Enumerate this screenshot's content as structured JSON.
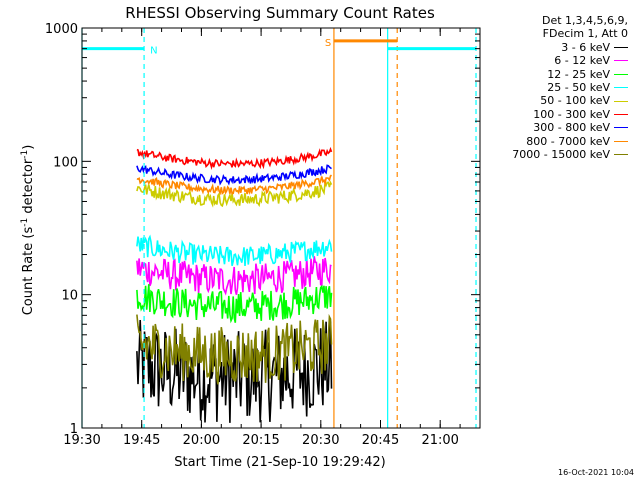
{
  "chart_data": {
    "type": "line",
    "title": "RHESSI Observing Summary Count Rates",
    "xlabel": "Start Time (21-Sep-10 19:29:42)",
    "ylabel": "Count Rate (s^-1 detector^-1)",
    "ylabel_parts": {
      "a": "Count Rate (s",
      "sup1": "-1",
      "b": " detector",
      "sup2": "-1",
      "c": ")"
    },
    "yscale": "log",
    "ylim": [
      1,
      1000
    ],
    "xlim": [
      "19:30",
      "21:10"
    ],
    "x_ticks": [
      "19:30",
      "19:45",
      "20:00",
      "20:15",
      "20:30",
      "20:45",
      "21:00"
    ],
    "x_tick_hours": [
      19.5,
      19.75,
      20.0,
      20.25,
      20.5,
      20.75,
      21.0
    ],
    "xlim_hours": [
      19.5,
      21.1667
    ],
    "y_ticks": [
      {
        "value": 1,
        "label": "1"
      },
      {
        "value": 10,
        "label": "10"
      },
      {
        "value": 100,
        "label": "100"
      },
      {
        "value": 1000,
        "label": "1000"
      }
    ],
    "header_lines": [
      "Det 1,3,4,5,6,9,",
      "FDecim 1, Att 0"
    ],
    "series": [
      {
        "name": "3 - 6 keV",
        "color": "#000000",
        "level": 2.6,
        "noise": 0.35
      },
      {
        "name": "6 - 12 keV",
        "color": "#ff00ff",
        "level": 14,
        "noise": 0.12
      },
      {
        "name": "12 - 25 keV",
        "color": "#00ff00",
        "level": 8.8,
        "noise": 0.12
      },
      {
        "name": "25 - 50 keV",
        "color": "#00ffff",
        "level": 21,
        "noise": 0.08
      },
      {
        "name": "50 - 100 keV",
        "color": "#cccc00",
        "level": 56,
        "noise": 0.05
      },
      {
        "name": "100 - 300 keV",
        "color": "#ff0000",
        "level": 104,
        "noise": 0.03
      },
      {
        "name": "300 - 800 keV",
        "color": "#0000ff",
        "level": 79,
        "noise": 0.03
      },
      {
        "name": "800 - 7000 keV",
        "color": "#ff8800",
        "level": 66,
        "noise": 0.03
      },
      {
        "name": "7000 - 15000 keV",
        "color": "#808000",
        "level": 3.8,
        "noise": 0.22
      }
    ],
    "data_start_hour": 19.72,
    "data_end_hour": 20.555,
    "flags": [
      {
        "label": "N",
        "color": "#00ffff",
        "value": 700,
        "start": 19.5,
        "end": 19.76
      },
      {
        "label": "S",
        "color": "#ff8800",
        "value": 800,
        "start": 20.555,
        "end": 20.82
      },
      {
        "label": "",
        "color": "#00ffff",
        "value": 700,
        "start": 20.78,
        "end": 21.15
      }
    ],
    "vlines": [
      {
        "hour": 19.5,
        "color": "#00ffff",
        "style": "solid"
      },
      {
        "hour": 19.76,
        "color": "#00ffff",
        "style": "dashed"
      },
      {
        "hour": 20.555,
        "color": "#ff8800",
        "style": "solid"
      },
      {
        "hour": 20.78,
        "color": "#00ffff",
        "style": "solid"
      },
      {
        "hour": 20.82,
        "color": "#ff8800",
        "style": "dashed"
      },
      {
        "hour": 21.15,
        "color": "#00ffff",
        "style": "dashed"
      }
    ],
    "timestamp": "16-Oct-2021 10:04"
  }
}
